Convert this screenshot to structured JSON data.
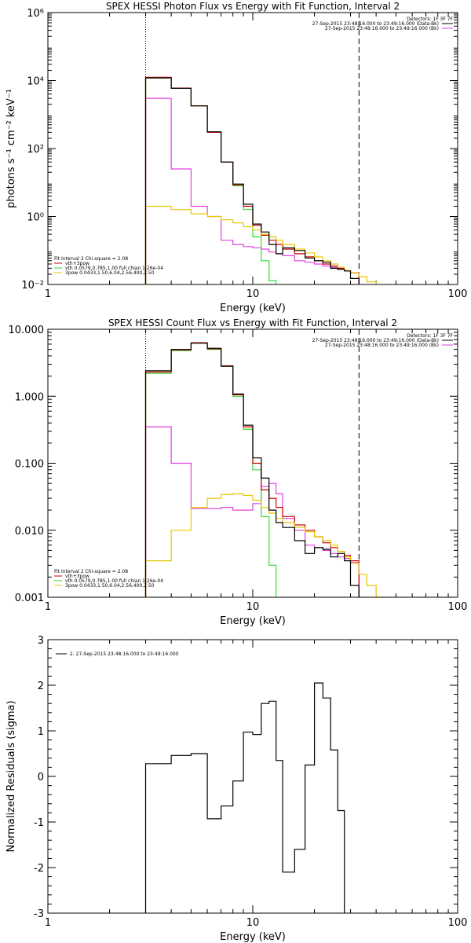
{
  "chart_data": [
    {
      "type": "line",
      "title": "SPEX HESSI Photon Flux vs Energy with Fit Function, Interval 2",
      "xlabel": "Energy (keV)",
      "ylabel": "photons s⁻¹ cm⁻² keV⁻¹",
      "xscale": "log",
      "yscale": "log",
      "xlim": [
        1,
        100
      ],
      "ylim": [
        0.01,
        1000000
      ],
      "xticks": [
        {
          "v": 1,
          "label": "1"
        },
        {
          "v": 10,
          "label": "10"
        },
        {
          "v": 100,
          "label": "100"
        }
      ],
      "yticks": [
        {
          "v": 0.01,
          "label": "10⁻²"
        },
        {
          "v": 1,
          "label": "10⁰"
        },
        {
          "v": 100,
          "label": "10²"
        },
        {
          "v": 10000,
          "label": "10⁴"
        },
        {
          "v": 1000000,
          "label": "10⁶"
        }
      ],
      "vlines": [
        {
          "x": 3,
          "style": "dotted"
        },
        {
          "x": 33,
          "style": "dashed"
        }
      ],
      "legend_top": {
        "placement": "top-right",
        "header": "Detectors: 1F 3F 7F",
        "entries": [
          {
            "label": "27-Sep-2015 23:48:16.000 to 23:49:16.000 (Data-Bk)",
            "color": "#000000"
          },
          {
            "label": "27-Sep-2015 23:48:16.000 to 23:49:16.000 (Bk)",
            "color": "#e040e0"
          }
        ]
      },
      "legend_bottom": {
        "placement": "bottom-left",
        "header": "Fit Interval 2   Chi-square = 2.08",
        "entries": [
          {
            "label": "vth+3pow",
            "color": "#cc0000"
          },
          {
            "label": "vth 0.0579,0.785,1.00  full chian 1.26e-04",
            "color": "#33dd33"
          },
          {
            "label": "3pow 0.0433,1.50,6.04,2.56,400,2.50",
            "color": "#e8c800"
          }
        ]
      },
      "series": [
        {
          "color": "#e040e0",
          "edges": [
            3,
            4,
            5,
            6,
            7,
            8,
            9,
            10,
            11,
            12,
            13,
            14,
            16,
            18,
            20,
            22,
            24,
            26,
            28,
            30,
            33
          ],
          "values": [
            3000,
            25,
            2.0,
            1.0,
            0.2,
            0.15,
            0.13,
            0.12,
            0.11,
            0.09,
            0.08,
            0.07,
            0.05,
            0.045,
            0.04,
            0.035,
            0.032,
            0.028,
            0.025,
            0.022
          ]
        },
        {
          "color": "#33dd33",
          "edges": [
            3,
            4,
            5,
            6,
            7,
            8,
            9,
            10,
            11,
            12,
            13,
            14
          ],
          "values": [
            12000,
            6000,
            1800,
            300,
            40,
            8,
            1.6,
            0.25,
            0.05,
            0.013,
            0.002
          ]
        },
        {
          "color": "#cc0000",
          "edges": [
            3,
            4,
            5,
            6,
            7,
            8,
            9,
            10,
            11,
            12,
            13,
            14,
            16,
            18,
            20,
            22,
            24,
            26,
            28,
            30,
            33
          ],
          "values": [
            12500,
            6000,
            1800,
            300,
            40,
            8.5,
            2.0,
            0.55,
            0.28,
            0.2,
            0.15,
            0.11,
            0.08,
            0.065,
            0.05,
            0.04,
            0.035,
            0.03,
            0.026,
            0.022
          ]
        },
        {
          "color": "#e8c800",
          "edges": [
            3,
            4,
            5,
            6,
            7,
            8,
            9,
            10,
            11,
            12,
            13,
            14,
            16,
            18,
            20,
            22,
            24,
            26,
            28,
            30,
            33,
            36,
            40
          ],
          "values": [
            2.0,
            1.6,
            1.2,
            1.0,
            0.8,
            0.65,
            0.5,
            0.4,
            0.3,
            0.25,
            0.2,
            0.15,
            0.11,
            0.085,
            0.065,
            0.05,
            0.04,
            0.032,
            0.026,
            0.022,
            0.017,
            0.012
          ]
        },
        {
          "color": "#000000",
          "edges": [
            3,
            4,
            5,
            6,
            7,
            8,
            9,
            10,
            11,
            12,
            13,
            14,
            16,
            18,
            20,
            22,
            24,
            26,
            28,
            30,
            33
          ],
          "values": [
            12000,
            5900,
            1800,
            310,
            40,
            9,
            2.3,
            0.6,
            0.35,
            0.15,
            0.08,
            0.12,
            0.1,
            0.06,
            0.05,
            0.045,
            0.03,
            0.028,
            0.025,
            0.015
          ]
        }
      ]
    },
    {
      "type": "line",
      "title": "SPEX HESSI Count Flux vs Energy with Fit Function, Interval 2",
      "xlabel": "Energy (keV)",
      "ylabel": "",
      "xscale": "log",
      "yscale": "log",
      "xlim": [
        1,
        100
      ],
      "ylim": [
        0.001,
        10
      ],
      "xticks": [
        {
          "v": 1,
          "label": "1"
        },
        {
          "v": 10,
          "label": "10"
        },
        {
          "v": 100,
          "label": "100"
        }
      ],
      "yticks": [
        {
          "v": 0.001,
          "label": "0.001"
        },
        {
          "v": 0.01,
          "label": "0.010"
        },
        {
          "v": 0.1,
          "label": "0.100"
        },
        {
          "v": 1,
          "label": "1.000"
        },
        {
          "v": 10,
          "label": "10.000"
        }
      ],
      "vlines": [
        {
          "x": 3,
          "style": "dotted"
        },
        {
          "x": 33,
          "style": "dashed"
        }
      ],
      "legend_top": {
        "placement": "top-right",
        "header": "Detectors: 1F 3F 7F",
        "entries": [
          {
            "label": "27-Sep-2015 23:48:16.000 to 23:49:16.000 (Data-Bk)",
            "color": "#000000"
          },
          {
            "label": "27-Sep-2015 23:48:16.000 to 23:49:16.000 (Bk)",
            "color": "#e040e0"
          }
        ]
      },
      "legend_bottom": {
        "placement": "bottom-left",
        "header": "Fit Interval 2   Chi-square = 2.08",
        "entries": [
          {
            "label": "vth+3pow",
            "color": "#cc0000"
          },
          {
            "label": "vth 0.0579,0.785,1.00  full chian 1.26e-04",
            "color": "#33dd33"
          },
          {
            "label": "3pow 0.0433,1.50,6.04,2.56,400,2.50",
            "color": "#e8c800"
          }
        ]
      },
      "series": [
        {
          "color": "#e040e0",
          "edges": [
            3,
            4,
            5,
            6,
            7,
            8,
            9,
            10,
            11,
            12,
            13,
            14,
            16,
            18,
            20,
            22,
            24,
            26,
            28,
            30,
            33
          ],
          "values": [
            0.35,
            0.1,
            0.021,
            0.021,
            0.022,
            0.02,
            0.02,
            0.025,
            0.045,
            0.05,
            0.035,
            0.015,
            0.01,
            0.006,
            0.0055,
            0.005,
            0.0045,
            0.004,
            0.0038,
            0.0033
          ]
        },
        {
          "color": "#33dd33",
          "edges": [
            3,
            4,
            5,
            6,
            7,
            8,
            9,
            10,
            11,
            12,
            13,
            14
          ],
          "values": [
            2.2,
            4.8,
            6.2,
            5.0,
            2.8,
            1.0,
            0.32,
            0.08,
            0.016,
            0.003,
            0.0008
          ]
        },
        {
          "color": "#cc0000",
          "edges": [
            3,
            4,
            5,
            6,
            7,
            8,
            9,
            10,
            11,
            12,
            13,
            14,
            16,
            18,
            20,
            22,
            24,
            26,
            28,
            30,
            33
          ],
          "values": [
            2.3,
            4.9,
            6.3,
            5.1,
            2.85,
            1.05,
            0.35,
            0.1,
            0.04,
            0.03,
            0.022,
            0.016,
            0.012,
            0.01,
            0.008,
            0.0065,
            0.0055,
            0.0048,
            0.0042,
            0.0035
          ]
        },
        {
          "color": "#e8c800",
          "edges": [
            3,
            4,
            5,
            6,
            7,
            8,
            9,
            10,
            11,
            12,
            13,
            14,
            16,
            18,
            20,
            22,
            24,
            26,
            28,
            30,
            33,
            36,
            40,
            45
          ],
          "values": [
            0.0035,
            0.01,
            0.022,
            0.03,
            0.034,
            0.035,
            0.033,
            0.028,
            0.022,
            0.018,
            0.015,
            0.013,
            0.011,
            0.0095,
            0.008,
            0.007,
            0.006,
            0.0048,
            0.004,
            0.0032,
            0.0022,
            0.0015,
            0.001
          ]
        },
        {
          "color": "#000000",
          "edges": [
            3,
            4,
            5,
            6,
            7,
            8,
            9,
            10,
            11,
            12,
            13,
            14,
            16,
            18,
            20,
            22,
            24,
            26,
            28,
            30,
            33
          ],
          "values": [
            2.4,
            5.0,
            6.2,
            5.2,
            2.8,
            1.08,
            0.37,
            0.12,
            0.06,
            0.02,
            0.013,
            0.011,
            0.007,
            0.0045,
            0.0055,
            0.0052,
            0.004,
            0.0045,
            0.0035,
            0.0015
          ]
        }
      ]
    },
    {
      "type": "line",
      "title": "",
      "xlabel": "Energy (keV)",
      "ylabel": "Normalized Residuals (sigma)",
      "xscale": "log",
      "yscale": "linear",
      "xlim": [
        1,
        100
      ],
      "ylim": [
        -3,
        3
      ],
      "xticks": [
        {
          "v": 1,
          "label": "1"
        },
        {
          "v": 10,
          "label": "10"
        },
        {
          "v": 100,
          "label": "100"
        }
      ],
      "yticks": [
        {
          "v": -3,
          "label": "-3"
        },
        {
          "v": -2,
          "label": "-2"
        },
        {
          "v": -1,
          "label": "-1"
        },
        {
          "v": 0,
          "label": "0"
        },
        {
          "v": 1,
          "label": "1"
        },
        {
          "v": 2,
          "label": "2"
        },
        {
          "v": 3,
          "label": "3"
        }
      ],
      "vlines": [],
      "legend_top": {
        "placement": "top-left",
        "header": "",
        "entries": [
          {
            "label": "2. 27-Sep-2015 23:48:16.000 to 23:49:16.000",
            "color": "#000000"
          }
        ]
      },
      "legend_bottom": null,
      "series": [
        {
          "color": "#000000",
          "edges": [
            3,
            4,
            5,
            6,
            7,
            8,
            9,
            10,
            11,
            12,
            13,
            14,
            16,
            18,
            20,
            22,
            24,
            26,
            28,
            30,
            33
          ],
          "values": [
            0.28,
            0.46,
            0.5,
            -0.93,
            -0.65,
            -0.1,
            0.97,
            0.92,
            1.6,
            1.65,
            0.35,
            -2.1,
            -1.6,
            0.25,
            2.05,
            1.72,
            0.58,
            -0.75,
            -3.1,
            -3.1
          ]
        }
      ]
    }
  ]
}
